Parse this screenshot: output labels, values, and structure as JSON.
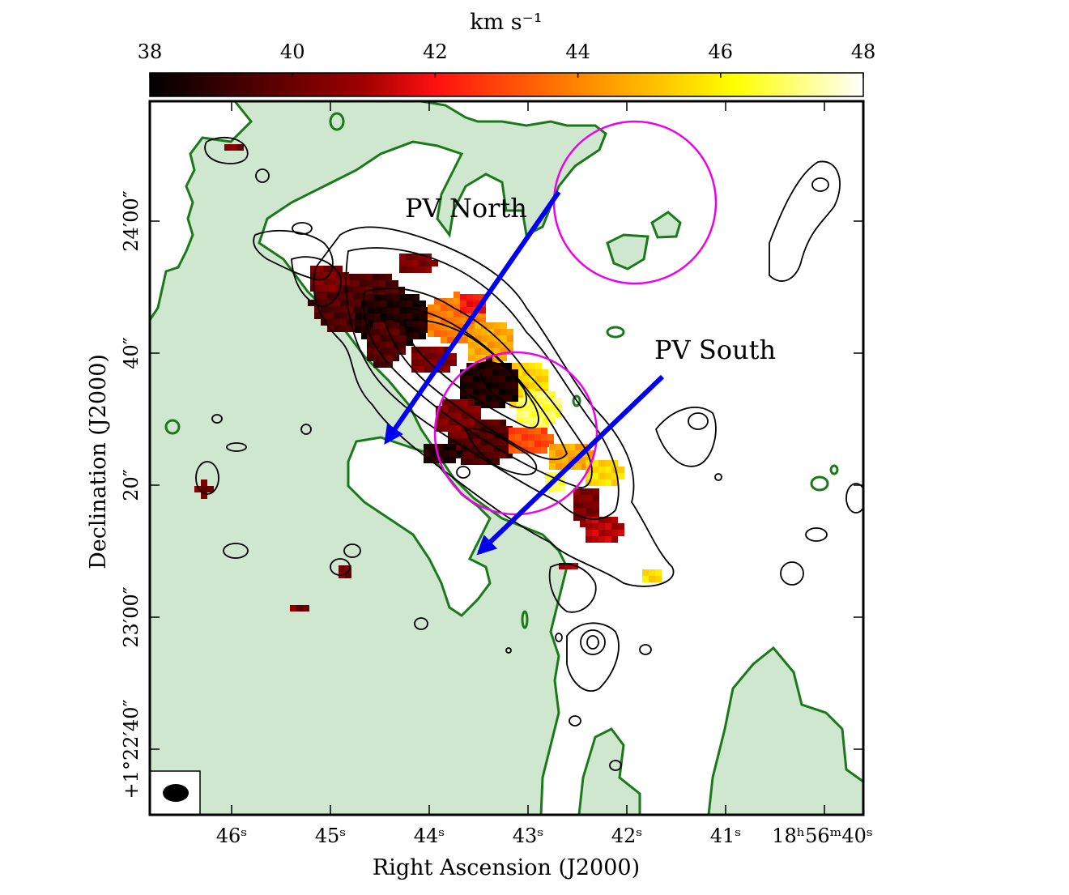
{
  "chart_data": {
    "type": "heatmap",
    "title": "",
    "colorbar": {
      "label": "km s⁻¹",
      "min": 38,
      "max": 48,
      "ticks": [
        "38",
        "40",
        "42",
        "44",
        "46",
        "48"
      ],
      "colormap": "hot",
      "placement": "top"
    },
    "xlabel": "Right Ascension (J2000)",
    "ylabel": "Declination (J2000)",
    "x_ticks": [
      "46ˢ",
      "45ˢ",
      "44ˢ",
      "43ˢ",
      "42ˢ",
      "41ˢ",
      "18ʰ56ᵐ40ˢ"
    ],
    "y_ticks": [
      "+1°22′40″",
      "23′00″",
      "20″",
      "40″",
      "24′00″"
    ],
    "annotations": [
      {
        "text": "PV North"
      },
      {
        "text": "PV South"
      }
    ],
    "arrow_color": "#0000ee",
    "circle_color": "#ee00ee",
    "shade_color": "#cfe6cf",
    "shade_contour_color": "#1a7a1a",
    "contour_color": "#000000",
    "velocity_samples_kms": [
      38.6,
      39.5,
      40.3,
      41.2,
      42.1,
      43.0,
      43.8,
      44.6,
      45.5,
      46.8
    ],
    "beam": "filled-ellipse-lower-left",
    "grid": false
  }
}
